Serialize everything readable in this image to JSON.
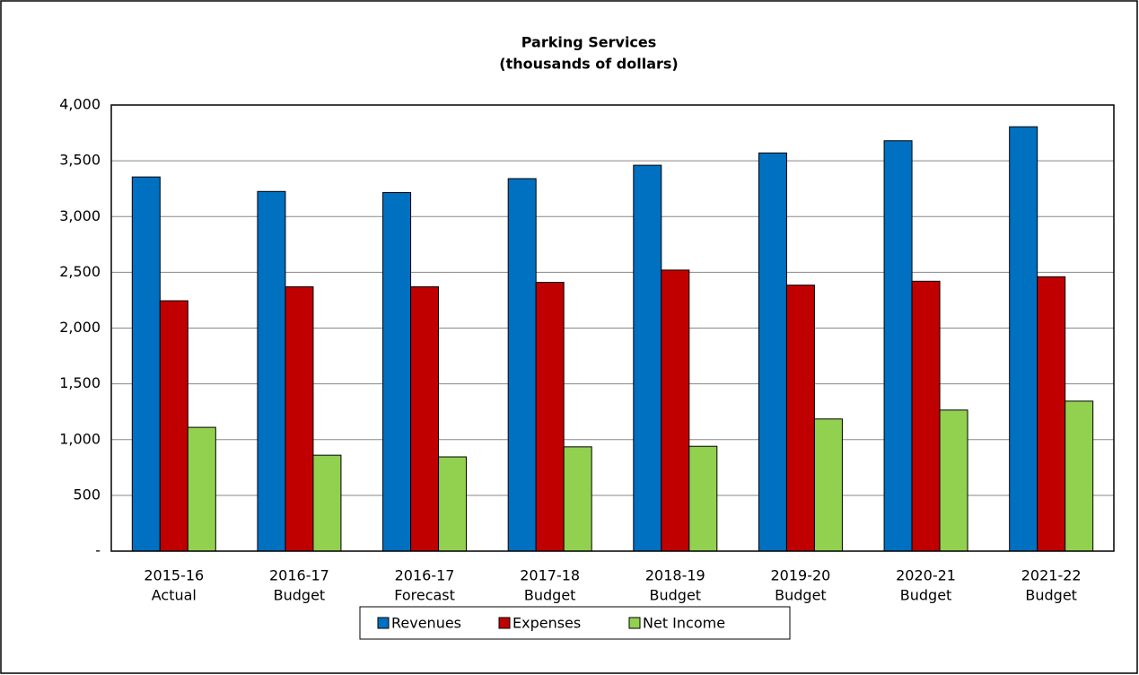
{
  "chart_data": {
    "type": "bar",
    "title": [
      "Parking Services",
      "(thousands of dollars)"
    ],
    "categories": [
      [
        "2015-16",
        "Actual"
      ],
      [
        "2016-17",
        "Budget"
      ],
      [
        "2016-17",
        "Forecast"
      ],
      [
        "2017-18",
        "Budget"
      ],
      [
        "2018-19",
        "Budget"
      ],
      [
        "2019-20",
        "Budget"
      ],
      [
        "2020-21",
        "Budget"
      ],
      [
        "2021-22",
        "Budget"
      ]
    ],
    "series": [
      {
        "name": "Revenues",
        "color": "#0070c0",
        "values": [
          3355,
          3225,
          3215,
          3340,
          3460,
          3570,
          3680,
          3805
        ]
      },
      {
        "name": "Expenses",
        "color": "#c00000",
        "values": [
          2245,
          2370,
          2370,
          2410,
          2520,
          2385,
          2420,
          2460
        ]
      },
      {
        "name": "Net Income",
        "color": "#92d050",
        "values": [
          1110,
          860,
          845,
          935,
          940,
          1185,
          1265,
          1345
        ]
      }
    ],
    "ylim": [
      0,
      4000
    ],
    "yticks": [
      {
        "value": 0,
        "label": "-"
      },
      500,
      {
        "value": 1000,
        "label": "1,000"
      },
      {
        "value": 1500,
        "label": "1,500"
      },
      {
        "value": 2000,
        "label": "2,000"
      },
      {
        "value": 2500,
        "label": "2,500"
      },
      {
        "value": 3000,
        "label": "3,000"
      },
      {
        "value": 3500,
        "label": "3,500"
      },
      {
        "value": 4000,
        "label": "4,000"
      }
    ],
    "grid": true,
    "legend": "bottom"
  }
}
